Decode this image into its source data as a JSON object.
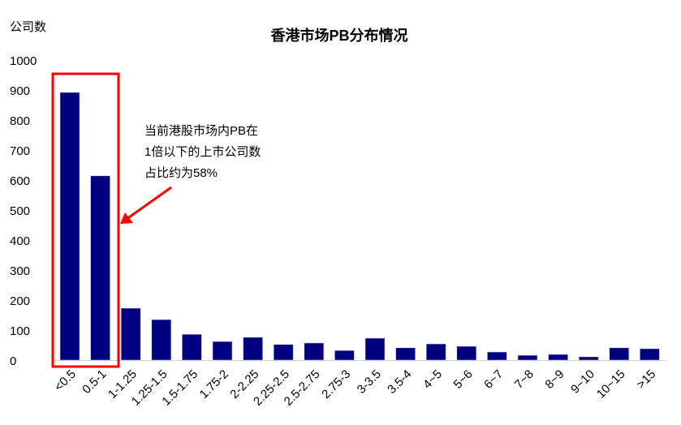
{
  "chart_data": {
    "type": "bar",
    "title": "香港市场PB分布情况",
    "ylabel": "公司数",
    "xlabel": "",
    "ylim": [
      0,
      1000
    ],
    "yticks": [
      0,
      100,
      200,
      300,
      400,
      500,
      600,
      700,
      800,
      900,
      1000
    ],
    "grid": false,
    "categories": [
      "<0.5",
      "0.5-1",
      "1-1.25",
      "1.25-1.5",
      "1.5-1.75",
      "1.75-2",
      "2-2.25",
      "2.25-2.5",
      "2.5-2.75",
      "2.75-3",
      "3-3.5",
      "3.5-4",
      "4~5",
      "5~6",
      "6~7",
      "7~8",
      "8~9",
      "9~10",
      "10~15",
      ">15"
    ],
    "values": [
      892,
      614,
      173,
      135,
      86,
      62,
      76,
      52,
      57,
      32,
      73,
      41,
      54,
      46,
      27,
      16,
      19,
      11,
      41,
      38
    ],
    "bar_color": "#000080",
    "highlight_color": "#ff0000",
    "annotation": {
      "lines": [
        "当前港股市场内PB在",
        "1倍以下的上市公司数",
        "占比约为58%"
      ]
    }
  }
}
